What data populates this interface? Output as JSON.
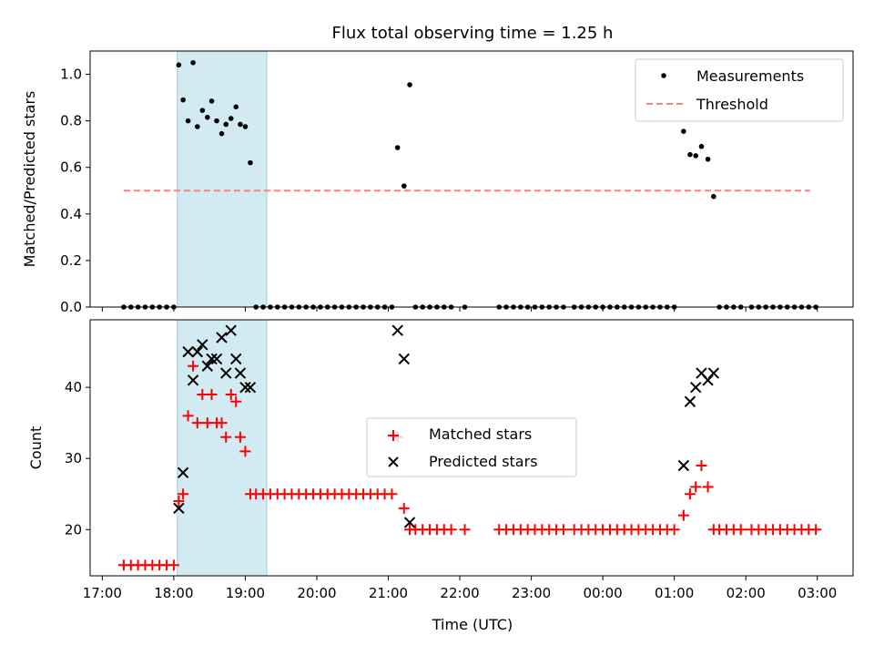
{
  "chart_data": [
    {
      "type": "scatter",
      "title": "Flux total observing time = 1.25 h",
      "xlabel": "",
      "ylabel": "Matched/Predicted stars",
      "ylim": [
        0,
        1.1
      ],
      "yticks": [
        0.0,
        0.2,
        0.4,
        0.6,
        0.8,
        1.0
      ],
      "ytick_labels": [
        "0.0",
        "0.2",
        "0.4",
        "0.6",
        "0.8",
        "1.0"
      ],
      "x_unit": "hours since 17:00 UTC",
      "shaded_span": {
        "x0": 1.05,
        "x1": 2.3,
        "color": "#add8e6"
      },
      "legend": {
        "location": "upper right",
        "entries": [
          "Measurements",
          "Threshold"
        ]
      },
      "series": [
        {
          "name": "Measurements",
          "kind": "scatter-dot",
          "color": "#000000",
          "points": [
            [
              0.3,
              0
            ],
            [
              0.4,
              0
            ],
            [
              0.5,
              0
            ],
            [
              0.6,
              0
            ],
            [
              0.7,
              0
            ],
            [
              0.8,
              0
            ],
            [
              0.9,
              0
            ],
            [
              1.0,
              0
            ],
            [
              1.07,
              1.04
            ],
            [
              1.13,
              0.89
            ],
            [
              1.2,
              0.8
            ],
            [
              1.27,
              1.05
            ],
            [
              1.33,
              0.775
            ],
            [
              1.4,
              0.845
            ],
            [
              1.47,
              0.815
            ],
            [
              1.53,
              0.885
            ],
            [
              1.6,
              0.8
            ],
            [
              1.67,
              0.745
            ],
            [
              1.73,
              0.785
            ],
            [
              1.8,
              0.81
            ],
            [
              1.87,
              0.86
            ],
            [
              1.93,
              0.785
            ],
            [
              2.0,
              0.775
            ],
            [
              2.07,
              0.62
            ],
            [
              2.15,
              0
            ],
            [
              2.25,
              0
            ],
            [
              2.35,
              0
            ],
            [
              2.45,
              0
            ],
            [
              2.55,
              0
            ],
            [
              2.65,
              0
            ],
            [
              2.75,
              0
            ],
            [
              2.85,
              0
            ],
            [
              2.95,
              0
            ],
            [
              3.05,
              0
            ],
            [
              3.15,
              0
            ],
            [
              3.25,
              0
            ],
            [
              3.35,
              0
            ],
            [
              3.45,
              0
            ],
            [
              3.55,
              0
            ],
            [
              3.65,
              0
            ],
            [
              3.75,
              0
            ],
            [
              3.85,
              0
            ],
            [
              3.95,
              0
            ],
            [
              4.05,
              0
            ],
            [
              4.13,
              0.685
            ],
            [
              4.22,
              0.52
            ],
            [
              4.3,
              0.955
            ],
            [
              4.38,
              0
            ],
            [
              4.48,
              0
            ],
            [
              4.58,
              0
            ],
            [
              4.68,
              0
            ],
            [
              4.78,
              0
            ],
            [
              4.88,
              0
            ],
            [
              5.07,
              0
            ],
            [
              5.55,
              0
            ],
            [
              5.65,
              0
            ],
            [
              5.75,
              0
            ],
            [
              5.85,
              0
            ],
            [
              5.95,
              0
            ],
            [
              6.05,
              0
            ],
            [
              6.15,
              0
            ],
            [
              6.25,
              0
            ],
            [
              6.35,
              0
            ],
            [
              6.45,
              0
            ],
            [
              6.6,
              0
            ],
            [
              6.7,
              0
            ],
            [
              6.8,
              0
            ],
            [
              6.9,
              0
            ],
            [
              7.0,
              0
            ],
            [
              7.1,
              0
            ],
            [
              7.2,
              0
            ],
            [
              7.3,
              0
            ],
            [
              7.4,
              0
            ],
            [
              7.5,
              0
            ],
            [
              7.6,
              0
            ],
            [
              7.7,
              0
            ],
            [
              7.8,
              0
            ],
            [
              7.9,
              0
            ],
            [
              8.0,
              0
            ],
            [
              8.13,
              0.755
            ],
            [
              8.22,
              0.655
            ],
            [
              8.3,
              0.65
            ],
            [
              8.38,
              0.69
            ],
            [
              8.47,
              0.635
            ],
            [
              8.55,
              0.475
            ],
            [
              8.63,
              0
            ],
            [
              8.73,
              0
            ],
            [
              8.83,
              0
            ],
            [
              8.93,
              0
            ],
            [
              9.08,
              0
            ],
            [
              9.18,
              0
            ],
            [
              9.28,
              0
            ],
            [
              9.38,
              0
            ],
            [
              9.48,
              0
            ],
            [
              9.58,
              0
            ],
            [
              9.68,
              0
            ],
            [
              9.78,
              0
            ],
            [
              9.88,
              0
            ],
            [
              9.98,
              0
            ]
          ]
        },
        {
          "name": "Threshold",
          "kind": "dashed-line",
          "color": "#ff7f7f",
          "points": [
            [
              0.3,
              0.5
            ],
            [
              9.9,
              0.5
            ]
          ]
        }
      ]
    },
    {
      "type": "scatter",
      "title": "",
      "xlabel": "Time (UTC)",
      "ylabel": "Count",
      "ylim": [
        13.5,
        49.5
      ],
      "yticks": [
        20,
        30,
        40
      ],
      "ytick_labels": [
        "20",
        "30",
        "40"
      ],
      "x_unit": "hours since 17:00 UTC",
      "xticks": [
        0,
        1,
        2,
        3,
        4,
        5,
        6,
        7,
        8,
        9,
        10
      ],
      "xtick_labels": [
        "17:00",
        "18:00",
        "19:00",
        "20:00",
        "21:00",
        "22:00",
        "23:00",
        "00:00",
        "01:00",
        "02:00",
        "03:00"
      ],
      "xlim": [
        -0.17,
        10.5
      ],
      "shaded_span": {
        "x0": 1.05,
        "x1": 2.3,
        "color": "#add8e6"
      },
      "legend": {
        "location": "center",
        "entries": [
          "Matched stars",
          "Predicted stars"
        ]
      },
      "series": [
        {
          "name": "Matched stars",
          "kind": "plus",
          "color": "#ff0000",
          "points": [
            [
              0.3,
              15
            ],
            [
              0.4,
              15
            ],
            [
              0.5,
              15
            ],
            [
              0.6,
              15
            ],
            [
              0.7,
              15
            ],
            [
              0.8,
              15
            ],
            [
              0.9,
              15
            ],
            [
              1.0,
              15
            ],
            [
              1.07,
              24
            ],
            [
              1.13,
              25
            ],
            [
              1.2,
              36
            ],
            [
              1.27,
              43
            ],
            [
              1.33,
              35
            ],
            [
              1.4,
              39
            ],
            [
              1.47,
              35
            ],
            [
              1.53,
              39
            ],
            [
              1.6,
              35
            ],
            [
              1.67,
              35
            ],
            [
              1.73,
              33
            ],
            [
              1.8,
              39
            ],
            [
              1.87,
              38
            ],
            [
              1.93,
              33
            ],
            [
              2.0,
              31
            ],
            [
              2.07,
              25
            ],
            [
              2.15,
              25
            ],
            [
              2.25,
              25
            ],
            [
              2.35,
              25
            ],
            [
              2.45,
              25
            ],
            [
              2.55,
              25
            ],
            [
              2.65,
              25
            ],
            [
              2.75,
              25
            ],
            [
              2.85,
              25
            ],
            [
              2.95,
              25
            ],
            [
              3.05,
              25
            ],
            [
              3.15,
              25
            ],
            [
              3.25,
              25
            ],
            [
              3.35,
              25
            ],
            [
              3.45,
              25
            ],
            [
              3.55,
              25
            ],
            [
              3.65,
              25
            ],
            [
              3.75,
              25
            ],
            [
              3.85,
              25
            ],
            [
              3.95,
              25
            ],
            [
              4.05,
              25
            ],
            [
              4.13,
              33
            ],
            [
              4.22,
              23
            ],
            [
              4.3,
              20
            ],
            [
              4.38,
              20
            ],
            [
              4.48,
              20
            ],
            [
              4.58,
              20
            ],
            [
              4.68,
              20
            ],
            [
              4.78,
              20
            ],
            [
              4.88,
              20
            ],
            [
              5.07,
              20
            ],
            [
              5.55,
              20
            ],
            [
              5.65,
              20
            ],
            [
              5.75,
              20
            ],
            [
              5.85,
              20
            ],
            [
              5.95,
              20
            ],
            [
              6.05,
              20
            ],
            [
              6.15,
              20
            ],
            [
              6.25,
              20
            ],
            [
              6.35,
              20
            ],
            [
              6.45,
              20
            ],
            [
              6.6,
              20
            ],
            [
              6.7,
              20
            ],
            [
              6.8,
              20
            ],
            [
              6.9,
              20
            ],
            [
              7.0,
              20
            ],
            [
              7.1,
              20
            ],
            [
              7.2,
              20
            ],
            [
              7.3,
              20
            ],
            [
              7.4,
              20
            ],
            [
              7.5,
              20
            ],
            [
              7.6,
              20
            ],
            [
              7.7,
              20
            ],
            [
              7.8,
              20
            ],
            [
              7.9,
              20
            ],
            [
              8.0,
              20
            ],
            [
              8.13,
              22
            ],
            [
              8.22,
              25
            ],
            [
              8.3,
              26
            ],
            [
              8.38,
              29
            ],
            [
              8.47,
              26
            ],
            [
              8.55,
              20
            ],
            [
              8.63,
              20
            ],
            [
              8.73,
              20
            ],
            [
              8.83,
              20
            ],
            [
              8.93,
              20
            ],
            [
              9.08,
              20
            ],
            [
              9.18,
              20
            ],
            [
              9.28,
              20
            ],
            [
              9.38,
              20
            ],
            [
              9.48,
              20
            ],
            [
              9.58,
              20
            ],
            [
              9.68,
              20
            ],
            [
              9.78,
              20
            ],
            [
              9.88,
              20
            ],
            [
              9.98,
              20
            ]
          ]
        },
        {
          "name": "Predicted stars",
          "kind": "x",
          "color": "#000000",
          "points": [
            [
              1.07,
              23
            ],
            [
              1.13,
              28
            ],
            [
              1.2,
              45
            ],
            [
              1.27,
              41
            ],
            [
              1.33,
              45
            ],
            [
              1.4,
              46
            ],
            [
              1.47,
              43
            ],
            [
              1.53,
              44
            ],
            [
              1.6,
              44
            ],
            [
              1.67,
              47
            ],
            [
              1.73,
              42
            ],
            [
              1.8,
              48
            ],
            [
              1.87,
              44
            ],
            [
              1.93,
              42
            ],
            [
              2.0,
              40
            ],
            [
              2.07,
              40
            ],
            [
              4.13,
              48
            ],
            [
              4.22,
              44
            ],
            [
              4.3,
              21
            ],
            [
              8.13,
              29
            ],
            [
              8.22,
              38
            ],
            [
              8.3,
              40
            ],
            [
              8.38,
              42
            ],
            [
              8.47,
              41
            ],
            [
              8.55,
              42
            ]
          ]
        }
      ]
    }
  ]
}
